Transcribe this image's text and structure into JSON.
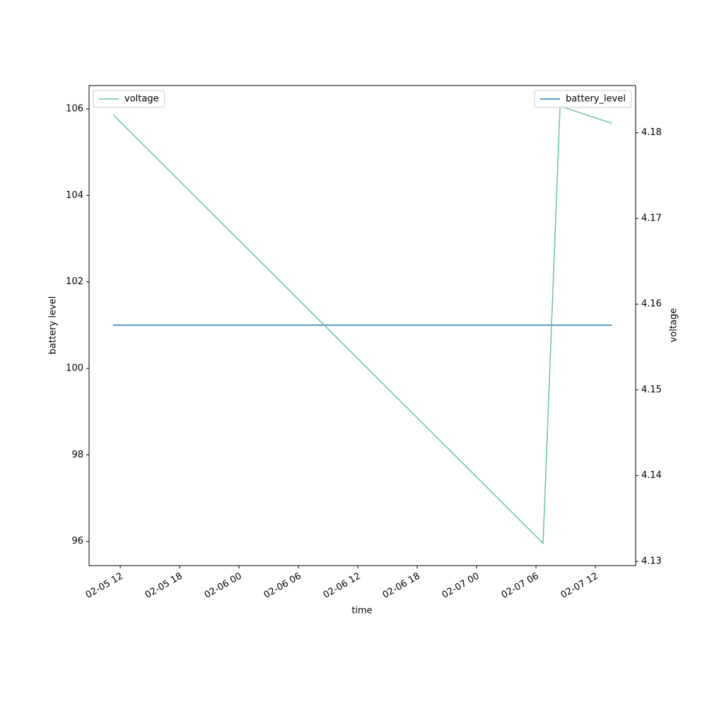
{
  "chart_data": {
    "type": "line",
    "x_label": "time",
    "y_label": "battery level",
    "y2_label": "voltage",
    "x": [
      "02-05 11:17",
      "02-07 06:43",
      "02-07 08:26",
      "02-07 13:39"
    ],
    "xlim": [
      "02-05 08:51",
      "02-07 16:04"
    ],
    "xticks": [
      "02-05 12",
      "02-05 18",
      "02-06 00",
      "02-06 06",
      "02-06 12",
      "02-06 18",
      "02-07 00",
      "02-07 06",
      "02-07 12"
    ],
    "ylim": [
      95.44,
      106.54
    ],
    "yticks": [
      96,
      98,
      100,
      102,
      104,
      106
    ],
    "y2lim": [
      4.1295,
      4.1855
    ],
    "y2ticks": [
      4.13,
      4.14,
      4.15,
      4.16,
      4.17,
      4.18
    ],
    "series": [
      {
        "name": "battery_level",
        "color": "#1f77b4",
        "axis": "y",
        "legend": "upper right",
        "values": [
          101,
          101,
          101,
          101
        ]
      },
      {
        "name": "voltage",
        "color": "#66c2a5",
        "axis": "y2",
        "legend": "upper left",
        "values": [
          4.1821,
          4.1321,
          4.1831,
          4.1811
        ]
      }
    ]
  }
}
